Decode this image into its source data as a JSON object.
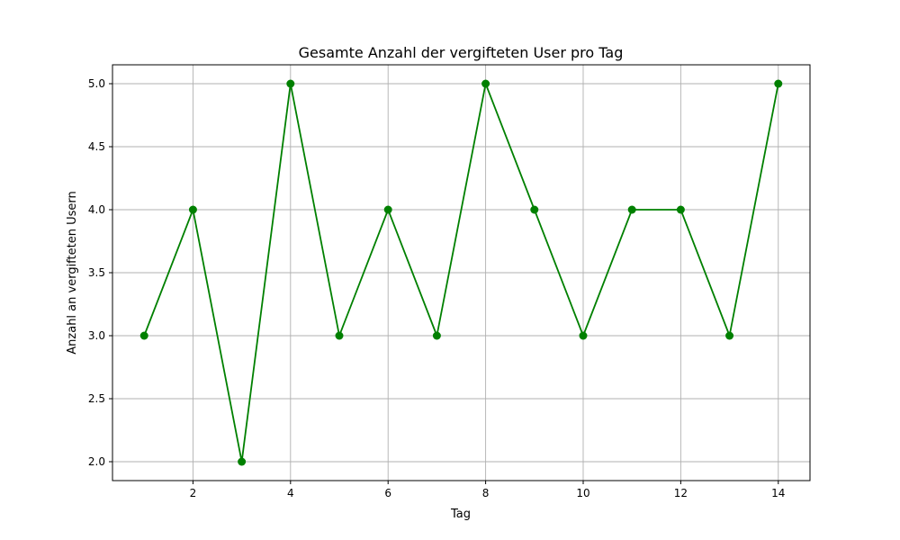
{
  "chart_data": {
    "type": "line",
    "title": "Gesamte Anzahl der vergifteten User pro Tag",
    "xlabel": "Tag",
    "ylabel": "Anzahl an vergifteten Usern",
    "x": [
      1,
      2,
      3,
      4,
      5,
      6,
      7,
      8,
      9,
      10,
      11,
      12,
      13,
      14
    ],
    "series": [
      {
        "values": [
          3,
          4,
          2,
          5,
          3,
          4,
          3,
          5,
          4,
          3,
          4,
          4,
          3,
          5
        ],
        "color": "#008000",
        "marker": "circle"
      }
    ],
    "xlim": [
      0.35,
      14.65
    ],
    "ylim": [
      1.85,
      5.15
    ],
    "xticks": [
      2,
      4,
      6,
      8,
      10,
      12,
      14
    ],
    "xtick_labels": [
      "2",
      "4",
      "6",
      "8",
      "10",
      "12",
      "14"
    ],
    "yticks": [
      2.0,
      2.5,
      3.0,
      3.5,
      4.0,
      4.5,
      5.0
    ],
    "ytick_labels": [
      "2.0",
      "2.5",
      "3.0",
      "3.5",
      "4.0",
      "4.5",
      "5.0"
    ],
    "grid": true,
    "legend": "none"
  }
}
